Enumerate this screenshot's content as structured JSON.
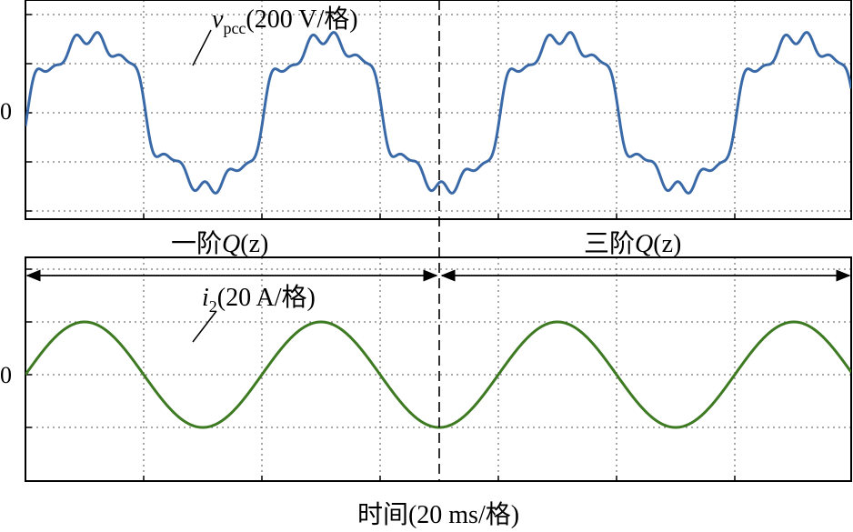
{
  "chart_data": [
    {
      "type": "line",
      "panel": "top",
      "zero_label": "0",
      "series": [
        {
          "name_parts": {
            "var": "v",
            "sub": "pcc",
            "unit": "(200 V/格)"
          },
          "color": "#3a69a8",
          "cycles_per_div": 0.5,
          "fundamental_amplitude_div": 1.6,
          "harmonics": [
            {
              "order": 3,
              "amplitude_div": 0.18
            },
            {
              "order": 5,
              "amplitude_div": 0.22
            },
            {
              "order": 7,
              "amplitude_div": 0.14
            },
            {
              "order": 11,
              "amplitude_div": 0.1
            }
          ]
        }
      ],
      "xlim_div": [
        0,
        7
      ],
      "ylim_div": [
        -2,
        2
      ]
    },
    {
      "type": "line",
      "panel": "bottom",
      "zero_label": "0",
      "series": [
        {
          "name_parts": {
            "var": "i",
            "sub": "2",
            "unit": "(20 A/格)"
          },
          "color": "#3d7a22",
          "cycles_per_div": 0.5,
          "amplitude_div": 1
        }
      ],
      "xlim_div": [
        0,
        7
      ],
      "ylim_div": [
        -2,
        2
      ]
    }
  ],
  "annotations": {
    "left_mode": {
      "prefix": "一阶",
      "var": "Q",
      "arg": "(z)"
    },
    "right_mode": {
      "prefix": "三阶",
      "var": "Q",
      "arg": "(z)"
    },
    "x_label": "时间(20 ms/格)"
  },
  "colors": {
    "voltage": "#3a69a8",
    "current": "#3d7a22",
    "grid": "#555555"
  }
}
